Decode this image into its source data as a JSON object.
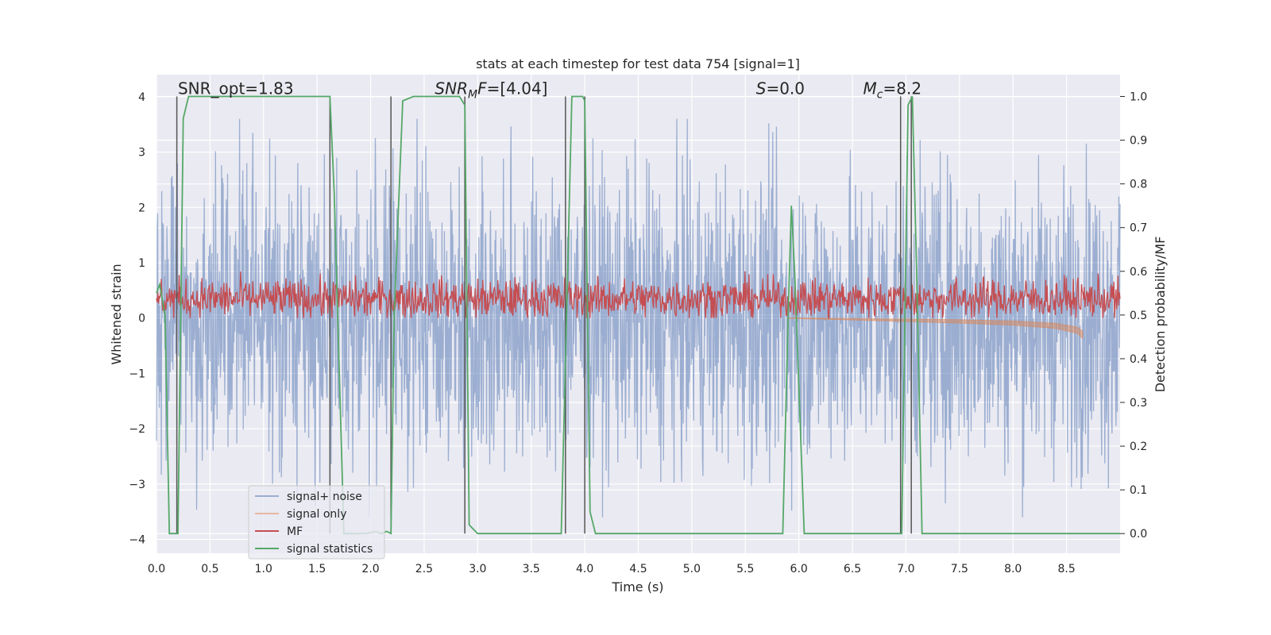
{
  "chart_data": {
    "type": "line",
    "title": "stats at each timestep for test data 754 [signal=1]",
    "xlabel": "Time (s)",
    "ylabel": "Whitened strain",
    "y2label": "Detection probability/MF",
    "xlim": [
      0.0,
      9.0
    ],
    "ylim": [
      -4.25,
      4.4
    ],
    "y2lim": [
      -0.045,
      1.05
    ],
    "x_ticks": [
      "0.0",
      "0.5",
      "1.0",
      "1.5",
      "2.0",
      "2.5",
      "3.0",
      "3.5",
      "4.0",
      "4.5",
      "5.0",
      "5.5",
      "6.0",
      "6.5",
      "7.0",
      "7.5",
      "8.0",
      "8.5"
    ],
    "y_ticks": [
      "−4",
      "−3",
      "−2",
      "−1",
      "0",
      "1",
      "2",
      "3",
      "4"
    ],
    "y2_ticks": [
      "0.0",
      "0.1",
      "0.2",
      "0.3",
      "0.4",
      "0.5",
      "0.6",
      "0.7",
      "0.8",
      "0.9",
      "1.0"
    ],
    "grid": true,
    "legend_position": "lower-left",
    "annotations": [
      {
        "text": "SNR_opt=1.83",
        "x": 0.2,
        "y": 4.05
      },
      {
        "text": "SNR",
        "sub": "M",
        "tail": "F=[4.04]",
        "italic": true,
        "x": 2.6,
        "y": 4.05
      },
      {
        "text": "S",
        "tail": "=0.0",
        "italic": true,
        "x": 5.6,
        "y": 4.05
      },
      {
        "text": "M",
        "sub": "c",
        "tail": "=8.2",
        "italic": true,
        "x": 6.6,
        "y": 4.05
      }
    ],
    "series": [
      {
        "name": "signal+ noise",
        "color": "#4c72b0",
        "opacity": 0.5,
        "axis": "left",
        "kind": "noise",
        "amplitude": 3.6,
        "mean": 0.0
      },
      {
        "name": "signal only",
        "color": "#dd8452",
        "opacity": 0.5,
        "axis": "left",
        "kind": "chirp",
        "x": [
          5.9,
          6.5,
          7.0,
          7.5,
          8.0,
          8.4,
          8.6,
          8.65
        ],
        "y": [
          0.0,
          -0.02,
          -0.04,
          -0.06,
          -0.09,
          -0.14,
          -0.22,
          -0.3
        ]
      },
      {
        "name": "MF",
        "color": "#c44e52",
        "opacity": 1.0,
        "axis": "left",
        "kind": "band",
        "low": 0.0,
        "high": 0.95,
        "mean": 0.35
      },
      {
        "name": "signal statistics",
        "color": "#55a868",
        "opacity": 1.0,
        "axis": "right",
        "x": [
          0.0,
          0.03,
          0.08,
          0.12,
          0.2,
          0.25,
          0.3,
          0.4,
          1.55,
          1.62,
          1.66,
          1.75,
          1.95,
          2.05,
          2.1,
          2.15,
          2.19,
          2.22,
          2.3,
          2.4,
          2.75,
          2.83,
          2.88,
          2.92,
          3.0,
          3.5,
          3.78,
          3.82,
          3.88,
          3.92,
          3.98,
          4.0,
          4.05,
          4.1,
          4.2,
          5.85,
          5.9,
          5.93,
          5.96,
          6.05,
          6.5,
          6.96,
          7.02,
          7.06,
          7.1,
          7.15,
          9.0
        ],
        "y": [
          0.55,
          0.57,
          0.5,
          0.0,
          0.0,
          0.95,
          1.0,
          1.0,
          1.0,
          1.0,
          0.78,
          0.0,
          0.0,
          0.005,
          0.0,
          0.005,
          0.0,
          0.5,
          0.99,
          1.0,
          1.0,
          1.0,
          0.98,
          0.02,
          0.0,
          0.0,
          0.0,
          0.4,
          1.0,
          1.0,
          1.0,
          0.99,
          0.05,
          0.0,
          0.0,
          0.0,
          0.5,
          0.75,
          0.6,
          0.0,
          0.0,
          0.0,
          0.98,
          1.0,
          0.6,
          0.0,
          0.0
        ]
      }
    ],
    "vlines": [
      0.19,
      1.62,
      2.19,
      2.88,
      3.82,
      4.0,
      6.95,
      7.05
    ]
  }
}
